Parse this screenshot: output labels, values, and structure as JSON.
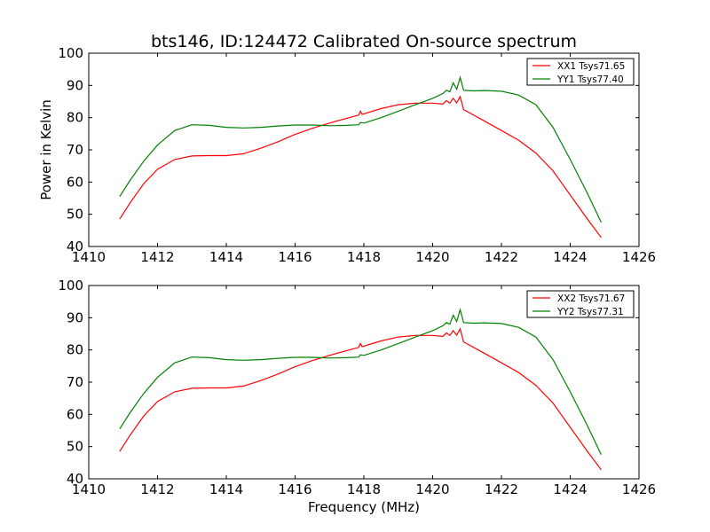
{
  "figure": {
    "title": "bts146, ID:124472 Calibrated On-source spectrum",
    "ylabel": "Power in Kelvin",
    "xlabel": "Frequency (MHz)"
  },
  "chart_data": [
    {
      "type": "line",
      "title": "bts146, ID:124472 Calibrated On-source spectrum",
      "xlabel": "",
      "ylabel": "Power in Kelvin",
      "xlim": [
        1410,
        1426
      ],
      "ylim": [
        40,
        100
      ],
      "xticks": [
        1410,
        1412,
        1414,
        1416,
        1418,
        1420,
        1422,
        1424,
        1426
      ],
      "yticks": [
        40,
        50,
        60,
        70,
        80,
        90,
        100
      ],
      "grid": false,
      "legend_position": "top-right",
      "series": [
        {
          "name": "XX1 Tsys71.65",
          "color": "#ff0000",
          "points": [
            [
              1410.9,
              48.5
            ],
            [
              1411.2,
              53.5
            ],
            [
              1411.6,
              59.5
            ],
            [
              1412.0,
              64.0
            ],
            [
              1412.5,
              67.0
            ],
            [
              1413.0,
              68.1
            ],
            [
              1413.5,
              68.2
            ],
            [
              1414.0,
              68.2
            ],
            [
              1414.5,
              68.8
            ],
            [
              1415.0,
              70.5
            ],
            [
              1415.5,
              72.5
            ],
            [
              1416.0,
              74.8
            ],
            [
              1416.5,
              76.7
            ],
            [
              1417.0,
              78.3
            ],
            [
              1417.5,
              79.8
            ],
            [
              1417.85,
              80.8
            ],
            [
              1417.9,
              82.0
            ],
            [
              1417.95,
              81.0
            ],
            [
              1418.5,
              82.8
            ],
            [
              1419.0,
              84.0
            ],
            [
              1419.5,
              84.5
            ],
            [
              1420.0,
              84.5
            ],
            [
              1420.3,
              84.2
            ],
            [
              1420.4,
              85.3
            ],
            [
              1420.5,
              84.5
            ],
            [
              1420.6,
              86.0
            ],
            [
              1420.7,
              84.6
            ],
            [
              1420.8,
              86.5
            ],
            [
              1420.9,
              82.5
            ],
            [
              1421.5,
              79.0
            ],
            [
              1422.0,
              76.0
            ],
            [
              1422.5,
              73.0
            ],
            [
              1423.0,
              69.0
            ],
            [
              1423.5,
              63.5
            ],
            [
              1424.0,
              56.0
            ],
            [
              1424.5,
              48.5
            ],
            [
              1424.9,
              42.8
            ]
          ]
        },
        {
          "name": "YY1 Tsys77.40",
          "color": "#008000",
          "points": [
            [
              1410.9,
              55.5
            ],
            [
              1411.2,
              60.5
            ],
            [
              1411.6,
              66.5
            ],
            [
              1412.0,
              71.5
            ],
            [
              1412.5,
              76.0
            ],
            [
              1413.0,
              77.8
            ],
            [
              1413.5,
              77.6
            ],
            [
              1414.0,
              77.0
            ],
            [
              1414.5,
              76.8
            ],
            [
              1415.0,
              77.0
            ],
            [
              1415.5,
              77.4
            ],
            [
              1416.0,
              77.7
            ],
            [
              1416.5,
              77.7
            ],
            [
              1417.0,
              77.5
            ],
            [
              1417.5,
              77.6
            ],
            [
              1417.85,
              77.8
            ],
            [
              1417.9,
              78.5
            ],
            [
              1418.0,
              78.3
            ],
            [
              1418.5,
              80.0
            ],
            [
              1419.0,
              82.0
            ],
            [
              1419.5,
              84.0
            ],
            [
              1420.0,
              86.0
            ],
            [
              1420.3,
              87.5
            ],
            [
              1420.4,
              88.5
            ],
            [
              1420.5,
              88.0
            ],
            [
              1420.6,
              90.8
            ],
            [
              1420.7,
              88.8
            ],
            [
              1420.8,
              92.5
            ],
            [
              1420.9,
              88.5
            ],
            [
              1421.2,
              88.3
            ],
            [
              1421.5,
              88.4
            ],
            [
              1422.0,
              88.2
            ],
            [
              1422.5,
              87.0
            ],
            [
              1423.0,
              84.0
            ],
            [
              1423.5,
              77.0
            ],
            [
              1424.0,
              67.0
            ],
            [
              1424.5,
              56.5
            ],
            [
              1424.9,
              47.5
            ]
          ]
        }
      ]
    },
    {
      "type": "line",
      "title": "",
      "xlabel": "Frequency (MHz)",
      "ylabel": "",
      "xlim": [
        1410,
        1426
      ],
      "ylim": [
        40,
        100
      ],
      "xticks": [
        1410,
        1412,
        1414,
        1416,
        1418,
        1420,
        1422,
        1424,
        1426
      ],
      "yticks": [
        40,
        50,
        60,
        70,
        80,
        90,
        100
      ],
      "grid": false,
      "legend_position": "top-right",
      "series": [
        {
          "name": "XX2 Tsys71.67",
          "color": "#ff0000",
          "points": [
            [
              1410.9,
              48.5
            ],
            [
              1411.2,
              53.5
            ],
            [
              1411.6,
              59.5
            ],
            [
              1412.0,
              64.0
            ],
            [
              1412.5,
              67.0
            ],
            [
              1413.0,
              68.1
            ],
            [
              1413.5,
              68.2
            ],
            [
              1414.0,
              68.2
            ],
            [
              1414.5,
              68.8
            ],
            [
              1415.0,
              70.5
            ],
            [
              1415.5,
              72.5
            ],
            [
              1416.0,
              74.8
            ],
            [
              1416.5,
              76.7
            ],
            [
              1417.0,
              78.3
            ],
            [
              1417.5,
              79.8
            ],
            [
              1417.85,
              80.8
            ],
            [
              1417.9,
              82.0
            ],
            [
              1417.95,
              81.0
            ],
            [
              1418.5,
              82.8
            ],
            [
              1419.0,
              84.0
            ],
            [
              1419.5,
              84.5
            ],
            [
              1420.0,
              84.5
            ],
            [
              1420.3,
              84.2
            ],
            [
              1420.4,
              85.3
            ],
            [
              1420.5,
              84.5
            ],
            [
              1420.6,
              86.0
            ],
            [
              1420.7,
              84.6
            ],
            [
              1420.8,
              86.5
            ],
            [
              1420.9,
              82.5
            ],
            [
              1421.5,
              79.0
            ],
            [
              1422.0,
              76.0
            ],
            [
              1422.5,
              73.0
            ],
            [
              1423.0,
              69.0
            ],
            [
              1423.5,
              63.5
            ],
            [
              1424.0,
              56.0
            ],
            [
              1424.5,
              48.5
            ],
            [
              1424.9,
              42.8
            ]
          ]
        },
        {
          "name": "YY2 Tsys77.31",
          "color": "#008000",
          "points": [
            [
              1410.9,
              55.5
            ],
            [
              1411.2,
              60.5
            ],
            [
              1411.6,
              66.5
            ],
            [
              1412.0,
              71.5
            ],
            [
              1412.5,
              76.0
            ],
            [
              1413.0,
              77.8
            ],
            [
              1413.5,
              77.6
            ],
            [
              1414.0,
              77.0
            ],
            [
              1414.5,
              76.8
            ],
            [
              1415.0,
              77.0
            ],
            [
              1415.5,
              77.4
            ],
            [
              1416.0,
              77.7
            ],
            [
              1416.5,
              77.7
            ],
            [
              1417.0,
              77.5
            ],
            [
              1417.5,
              77.6
            ],
            [
              1417.85,
              77.8
            ],
            [
              1417.9,
              78.5
            ],
            [
              1418.0,
              78.3
            ],
            [
              1418.5,
              80.0
            ],
            [
              1419.0,
              82.0
            ],
            [
              1419.5,
              84.0
            ],
            [
              1420.0,
              86.0
            ],
            [
              1420.3,
              87.5
            ],
            [
              1420.4,
              88.5
            ],
            [
              1420.5,
              88.0
            ],
            [
              1420.6,
              90.8
            ],
            [
              1420.7,
              88.8
            ],
            [
              1420.8,
              92.5
            ],
            [
              1420.9,
              88.5
            ],
            [
              1421.2,
              88.3
            ],
            [
              1421.5,
              88.4
            ],
            [
              1422.0,
              88.2
            ],
            [
              1422.5,
              87.0
            ],
            [
              1423.0,
              84.0
            ],
            [
              1423.5,
              77.0
            ],
            [
              1424.0,
              67.0
            ],
            [
              1424.5,
              56.5
            ],
            [
              1424.9,
              47.5
            ]
          ]
        }
      ]
    }
  ]
}
